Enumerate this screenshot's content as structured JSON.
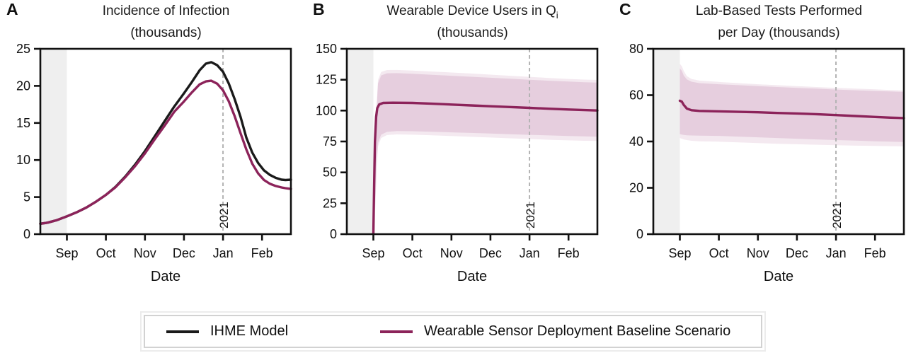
{
  "figure": {
    "x_categories": [
      "Sep",
      "Oct",
      "Nov",
      "Dec",
      "Jan",
      "Feb"
    ],
    "x_axis_label": "Date",
    "annotation_year": "2021",
    "colors": {
      "ihme_line": "#1a1a1a",
      "scenario_line": "#8c235a",
      "band_fill": "#e6cede",
      "band_fill_outer": "#f4e9f0",
      "pre_period_fill": "#efefef",
      "dashed_line": "#b3b3b3",
      "annotation_text": "#9a9a9a",
      "axis": "#111111"
    }
  },
  "panels": [
    {
      "letter": "A",
      "title_line1": "Incidence of Infection",
      "title_sub": "",
      "title_line2": "(thousands)"
    },
    {
      "letter": "B",
      "title_line1": "Wearable Device Users in Q",
      "title_sub": "i",
      "title_line2": "(thousands)"
    },
    {
      "letter": "C",
      "title_line1": "Lab-Based Tests Performed",
      "title_sub": "",
      "title_line2": "per Day (thousands)"
    }
  ],
  "legend": {
    "items": [
      {
        "label": "IHME Model",
        "color": "#1a1a1a"
      },
      {
        "label": "Wearable Sensor Deployment Baseline Scenario",
        "color": "#8c235a"
      }
    ]
  },
  "chart_data": [
    {
      "id": "A",
      "type": "line",
      "title": "Incidence of Infection (thousands)",
      "xlabel": "Date",
      "x_unit": "months (0 = Sep 1 2020)",
      "xlim": [
        -0.68,
        5.74
      ],
      "ylim": [
        0,
        25
      ],
      "y_ticks": [
        0,
        5,
        10,
        15,
        20,
        25
      ],
      "x_tick_positions": [
        0,
        1,
        2,
        3,
        4,
        5
      ],
      "x_tick_labels": [
        "Sep",
        "Oct",
        "Nov",
        "Dec",
        "Jan",
        "Feb"
      ],
      "pre_period": [
        -0.68,
        0
      ],
      "event_line": {
        "x": 4,
        "label": "2021"
      },
      "series": [
        {
          "name": "IHME Model",
          "color": "#1a1a1a",
          "x": [
            -0.68,
            -0.5,
            -0.25,
            0,
            0.25,
            0.5,
            0.75,
            1,
            1.25,
            1.5,
            1.75,
            2,
            2.25,
            2.5,
            2.75,
            3,
            3.2,
            3.4,
            3.56,
            3.7,
            3.85,
            4,
            4.15,
            4.3,
            4.45,
            4.6,
            4.75,
            4.9,
            5.05,
            5.2,
            5.35,
            5.5,
            5.6,
            5.74
          ],
          "values": [
            1.4,
            1.55,
            1.9,
            2.4,
            2.95,
            3.6,
            4.4,
            5.3,
            6.4,
            7.8,
            9.4,
            11.2,
            13.2,
            15.2,
            17.2,
            19.0,
            20.5,
            22.1,
            23.0,
            23.2,
            22.8,
            21.9,
            20.3,
            18.2,
            15.8,
            13.0,
            11.0,
            9.6,
            8.6,
            8.0,
            7.6,
            7.35,
            7.3,
            7.35
          ]
        },
        {
          "name": "Wearable Sensor Deployment Baseline Scenario",
          "color": "#8c235a",
          "x": [
            -0.68,
            -0.5,
            -0.25,
            0,
            0.25,
            0.5,
            0.75,
            1,
            1.25,
            1.5,
            1.75,
            2,
            2.25,
            2.5,
            2.75,
            3,
            3.2,
            3.4,
            3.56,
            3.7,
            3.85,
            4,
            4.15,
            4.3,
            4.45,
            4.6,
            4.75,
            4.9,
            5.05,
            5.2,
            5.35,
            5.5,
            5.6,
            5.74
          ],
          "values": [
            1.4,
            1.55,
            1.9,
            2.4,
            2.95,
            3.6,
            4.4,
            5.3,
            6.35,
            7.7,
            9.2,
            10.9,
            12.8,
            14.6,
            16.5,
            17.9,
            19.1,
            20.2,
            20.6,
            20.7,
            20.3,
            19.4,
            17.9,
            15.9,
            13.6,
            11.4,
            9.5,
            8.2,
            7.3,
            6.8,
            6.5,
            6.3,
            6.2,
            6.1
          ]
        }
      ]
    },
    {
      "id": "B",
      "type": "line",
      "title": "Wearable Device Users in Qi (thousands)",
      "xlabel": "Date",
      "x_unit": "months (0 = Sep 1 2020)",
      "xlim": [
        -0.68,
        5.74
      ],
      "ylim": [
        0,
        150
      ],
      "y_ticks": [
        0,
        25,
        50,
        75,
        100,
        125,
        150
      ],
      "x_tick_positions": [
        0,
        1,
        2,
        3,
        4,
        5
      ],
      "x_tick_labels": [
        "Sep",
        "Oct",
        "Nov",
        "Dec",
        "Jan",
        "Feb"
      ],
      "pre_period": [
        -0.68,
        0
      ],
      "event_line": {
        "x": 4,
        "label": "2021"
      },
      "series": [
        {
          "name": "Wearable Sensor Deployment Baseline Scenario",
          "color": "#8c235a",
          "x": [
            0,
            0.02,
            0.04,
            0.07,
            0.1,
            0.15,
            0.25,
            0.5,
            1,
            1.5,
            2,
            2.5,
            3,
            3.5,
            4,
            4.5,
            5,
            5.4,
            5.74
          ],
          "values": [
            0,
            40,
            75,
            95,
            102,
            105,
            106.2,
            106.4,
            106.2,
            105.6,
            104.9,
            104.2,
            103.5,
            102.9,
            102.2,
            101.5,
            100.9,
            100.4,
            100.1
          ],
          "band": {
            "x": [
              0.05,
              0.08,
              0.12,
              0.2,
              0.35,
              0.6,
              1,
              1.5,
              2,
              2.5,
              3,
              3.5,
              4,
              4.5,
              5,
              5.4,
              5.74
            ],
            "upper": [
              60,
              100,
              122,
              128.5,
              130.2,
              130.3,
              129.8,
              129.0,
              128.2,
              127.4,
              126.6,
              125.8,
              125.0,
              124.2,
              123.5,
              123.0,
              122.7
            ],
            "lower": [
              20,
              55,
              74,
              80.5,
              82.8,
              83.4,
              83.3,
              82.9,
              82.4,
              81.9,
              81.4,
              80.9,
              80.4,
              79.9,
              79.4,
              79.1,
              78.9
            ]
          },
          "band_outer": {
            "x": [
              0.05,
              0.08,
              0.12,
              0.2,
              0.35,
              0.6,
              1,
              1.5,
              2,
              2.5,
              3,
              3.5,
              4,
              4.5,
              5,
              5.4,
              5.74
            ],
            "upper": [
              62,
              103,
              125,
              131.2,
              132.8,
              132.9,
              132.4,
              131.6,
              130.8,
              130.0,
              129.1,
              128.2,
              127.3,
              126.4,
              125.6,
              125.1,
              124.8
            ],
            "lower": [
              18,
              52,
              71,
              77.8,
              80.2,
              80.7,
              80.5,
              80.0,
              79.4,
              78.8,
              78.2,
              77.6,
              77.0,
              76.4,
              75.9,
              75.6,
              75.4
            ]
          }
        }
      ]
    },
    {
      "id": "C",
      "type": "line",
      "title": "Lab-Based Tests Performed per Day (thousands)",
      "xlabel": "Date",
      "x_unit": "months (0 = Sep 1 2020)",
      "xlim": [
        -0.68,
        5.74
      ],
      "ylim": [
        0,
        80
      ],
      "y_ticks": [
        0,
        20,
        40,
        60,
        80
      ],
      "x_tick_positions": [
        0,
        1,
        2,
        3,
        4,
        5
      ],
      "x_tick_labels": [
        "Sep",
        "Oct",
        "Nov",
        "Dec",
        "Jan",
        "Feb"
      ],
      "pre_period": [
        -0.68,
        0
      ],
      "event_line": {
        "x": 4,
        "label": "2021"
      },
      "series": [
        {
          "name": "Wearable Sensor Deployment Baseline Scenario",
          "color": "#8c235a",
          "x": [
            0,
            0.05,
            0.1,
            0.18,
            0.3,
            0.5,
            1,
            1.5,
            2,
            2.5,
            3,
            3.5,
            4,
            4.5,
            5,
            5.4,
            5.74
          ],
          "values": [
            57.6,
            57.2,
            55.8,
            54.2,
            53.5,
            53.2,
            53.0,
            52.8,
            52.6,
            52.3,
            52.1,
            51.8,
            51.4,
            51.0,
            50.6,
            50.3,
            50.1
          ],
          "band": {
            "x": [
              0,
              0.05,
              0.1,
              0.18,
              0.3,
              0.5,
              1,
              1.5,
              2,
              2.5,
              3,
              3.5,
              4,
              4.5,
              5,
              5.4,
              5.74
            ],
            "upper": [
              71.5,
              70.5,
              68.5,
              66.8,
              65.8,
              65.2,
              64.7,
              64.3,
              63.9,
              63.5,
              63.1,
              62.8,
              62.4,
              62.1,
              61.8,
              61.6,
              61.4
            ],
            "lower": [
              43.2,
              43.0,
              42.8,
              42.7,
              42.6,
              42.5,
              42.4,
              42.1,
              41.8,
              41.5,
              41.2,
              40.9,
              40.6,
              40.4,
              40.1,
              39.9,
              39.8
            ]
          },
          "band_outer": {
            "x": [
              0,
              0.05,
              0.1,
              0.18,
              0.3,
              0.5,
              1,
              1.5,
              2,
              2.5,
              3,
              3.5,
              4,
              4.5,
              5,
              5.4,
              5.74
            ],
            "upper": [
              73.5,
              72.5,
              70.5,
              68.2,
              67.0,
              66.3,
              65.7,
              65.2,
              64.7,
              64.3,
              63.9,
              63.5,
              63.1,
              62.8,
              62.5,
              62.2,
              62.0
            ],
            "lower": [
              41.5,
              41.2,
              40.9,
              40.6,
              40.3,
              40.1,
              39.9,
              39.6,
              39.3,
              39.0,
              38.8,
              38.6,
              38.4,
              38.2,
              38.1,
              38.0,
              37.9
            ]
          }
        }
      ]
    }
  ]
}
